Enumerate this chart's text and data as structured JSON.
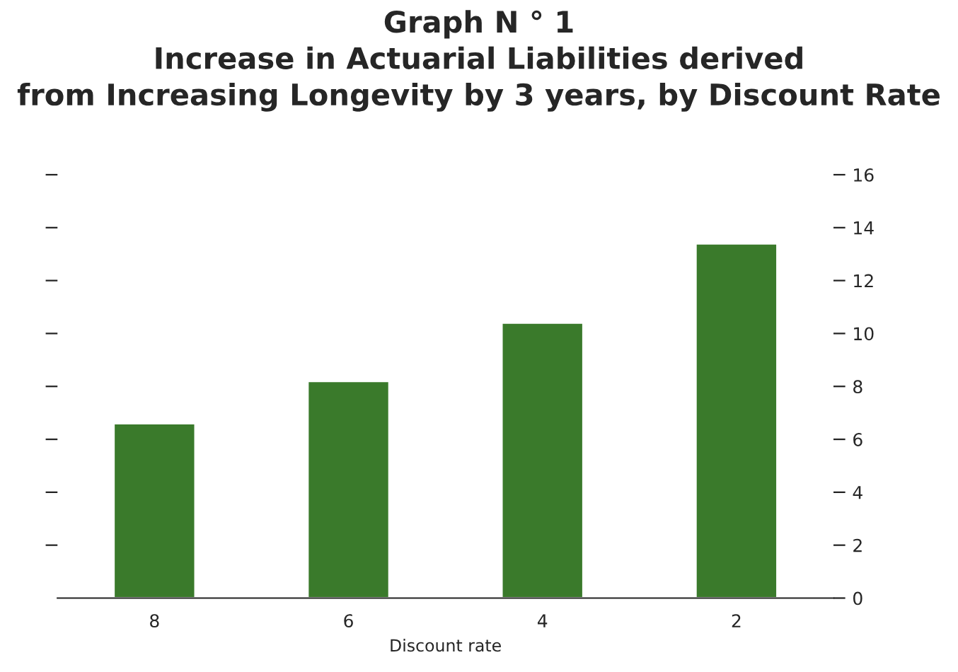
{
  "chart_data": {
    "type": "bar",
    "title": "Graph N ° 1\nIncrease in Actuarial Liabilities derived\nfrom Increasing Longevity by 3 years, by Discount Rate",
    "xlabel": "Discount rate",
    "categories": [
      "8",
      "6",
      "4",
      "2"
    ],
    "values": [
      6.6,
      8.2,
      10.4,
      13.4
    ],
    "color": "#3a7a2b",
    "ylim": [
      0,
      16
    ],
    "yticks": [
      0,
      2,
      4,
      6,
      8,
      10,
      12,
      14,
      16
    ],
    "grid": false
  }
}
